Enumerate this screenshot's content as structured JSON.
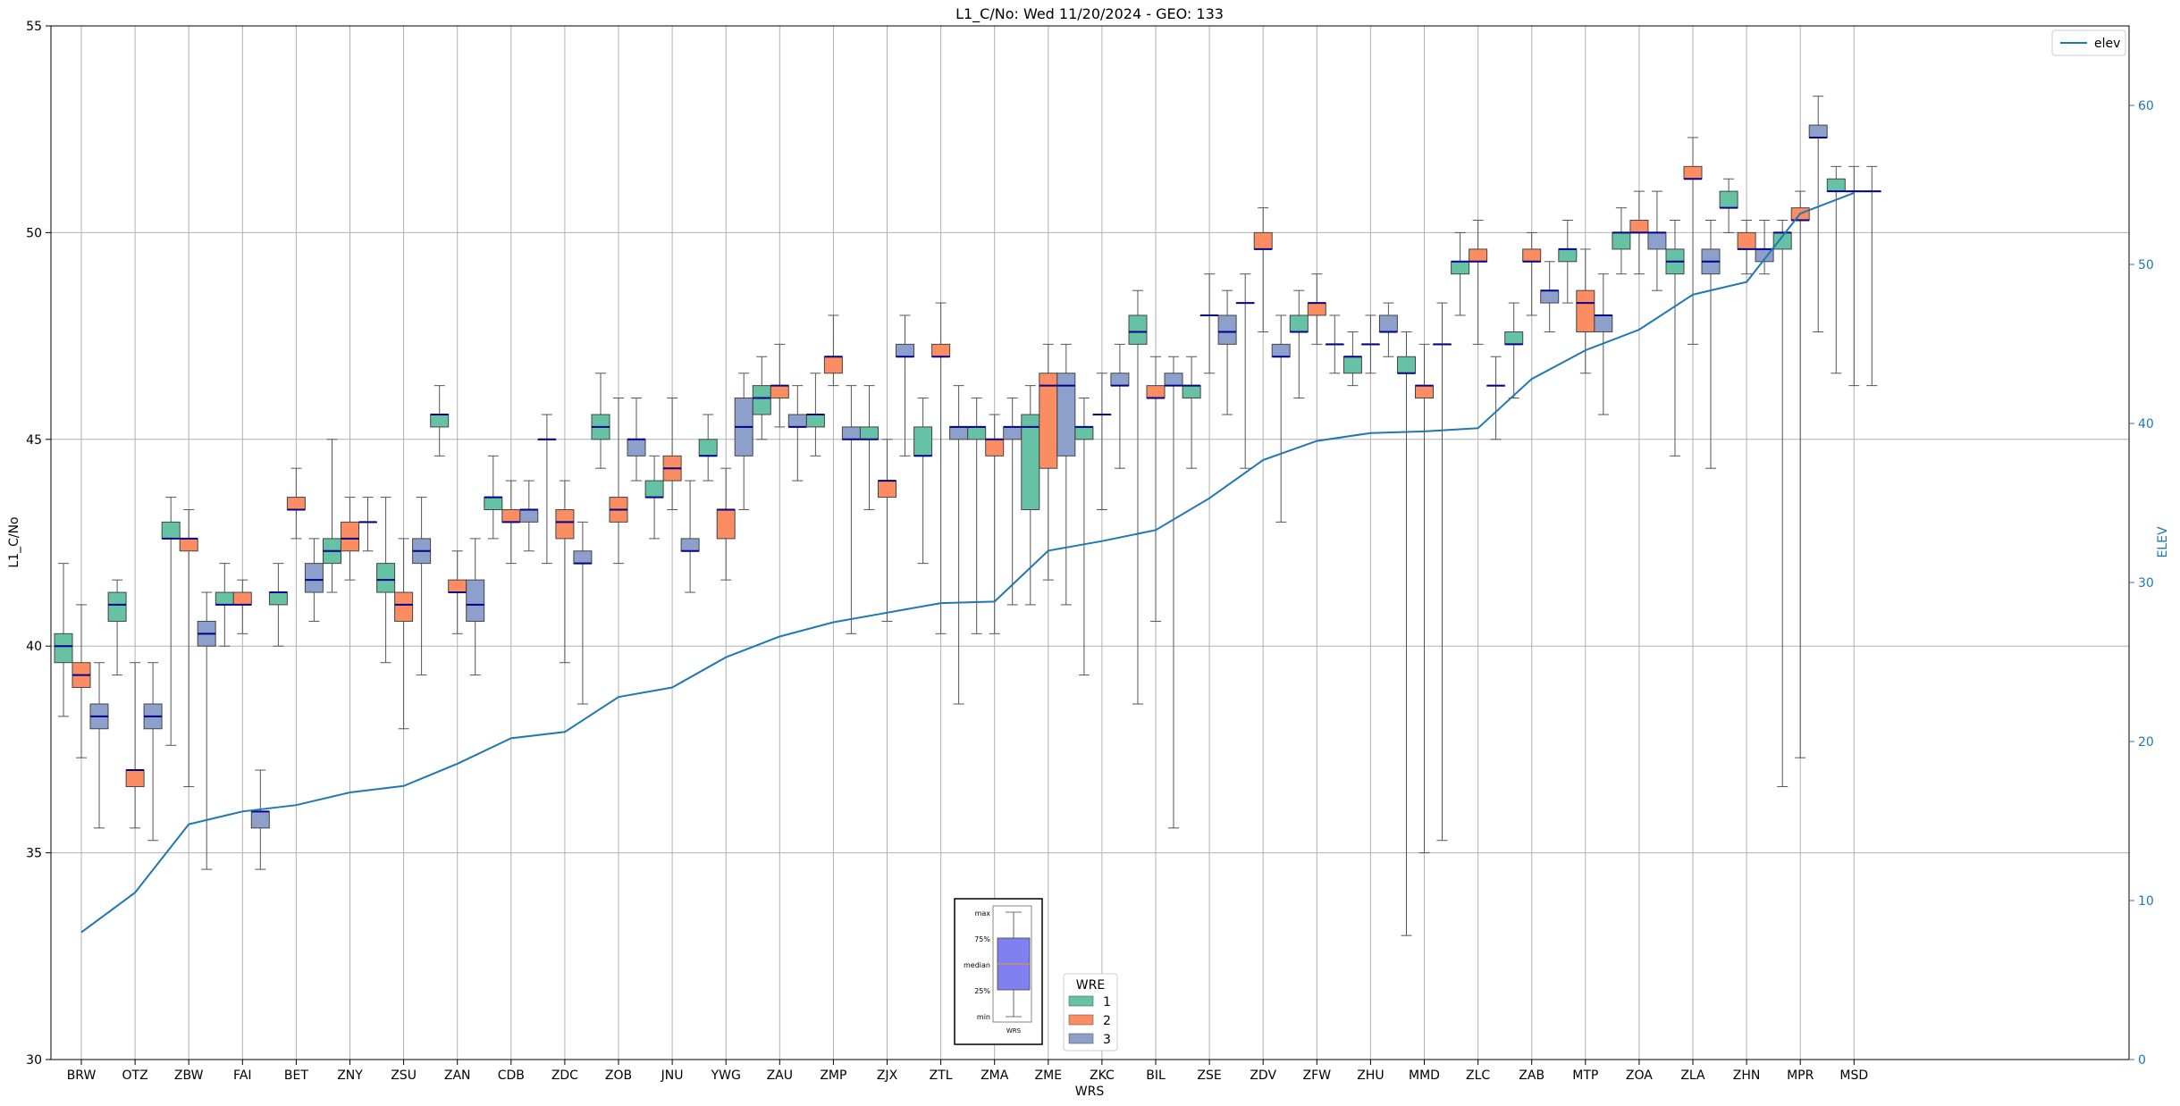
{
  "chart_data": {
    "type": "box",
    "title": "L1_C/No: Wed 11/20/2024 - GEO: 133",
    "xlabel": "WRS",
    "ylabel": "L1_C/No",
    "y2label": "ELEV",
    "ylim": [
      30,
      55
    ],
    "y2lim": [
      0,
      65
    ],
    "yticks": [
      30,
      35,
      40,
      45,
      50,
      55
    ],
    "y2ticks": [
      0,
      10,
      20,
      30,
      40,
      50,
      60
    ],
    "grid": true,
    "categories": [
      "BRW",
      "OTZ",
      "ZBW",
      "FAI",
      "BET",
      "ZNY",
      "ZSU",
      "ZAN",
      "CDB",
      "ZDC",
      "ZOB",
      "JNU",
      "YWG",
      "ZAU",
      "ZMP",
      "ZJX",
      "ZTL",
      "ZMA",
      "ZME",
      "ZKC",
      "BIL",
      "ZSE",
      "ZDV",
      "ZFW",
      "ZHU",
      "MMD",
      "ZLC",
      "ZAB",
      "MTP",
      "ZOA",
      "ZLA",
      "ZHN",
      "MPR",
      "MSD"
    ],
    "wre_colors": {
      "1": "#66c2a5",
      "2": "#fc8d62",
      "3": "#8da0cb"
    },
    "median_color": "#00008b",
    "elev_color": "#1f77b4",
    "legend": {
      "elev_label": "elev",
      "elev_position": "top-right",
      "wre_title": "WRE",
      "wre_labels": [
        "1",
        "2",
        "3"
      ],
      "wre_position": "bottom-center"
    },
    "key_labels": {
      "max": "max",
      "q3": "75%",
      "median": "median",
      "q1": "25%",
      "min": "min",
      "x": "WRS"
    },
    "elevation": [
      8,
      10.5,
      14.8,
      15.6,
      16,
      16.8,
      17.2,
      18.6,
      20.2,
      20.6,
      22.8,
      23.4,
      25.3,
      26.6,
      27.5,
      28.1,
      28.7,
      28.8,
      32,
      32.6,
      33.3,
      35.3,
      37.7,
      38.9,
      39.4,
      39.5,
      39.7,
      42.8,
      44.6,
      45.9,
      48.1,
      48.9,
      53.2,
      54.5
    ],
    "series": [
      {
        "wre": "1",
        "station": "BRW",
        "min": 38.3,
        "q1": 39.6,
        "median": 40.0,
        "q3": 40.3,
        "max": 42.0
      },
      {
        "wre": "2",
        "station": "BRW",
        "min": 37.3,
        "q1": 39.0,
        "median": 39.3,
        "q3": 39.6,
        "max": 41.0
      },
      {
        "wre": "3",
        "station": "BRW",
        "min": 35.6,
        "q1": 38.0,
        "median": 38.3,
        "q3": 38.6,
        "max": 39.6
      },
      {
        "wre": "1",
        "station": "OTZ",
        "min": 39.3,
        "q1": 40.6,
        "median": 41.0,
        "q3": 41.3,
        "max": 41.6
      },
      {
        "wre": "2",
        "station": "OTZ",
        "min": 35.6,
        "q1": 36.6,
        "median": 37.0,
        "q3": 37.0,
        "max": 39.6
      },
      {
        "wre": "3",
        "station": "OTZ",
        "min": 35.3,
        "q1": 38.0,
        "median": 38.3,
        "q3": 38.6,
        "max": 39.6
      },
      {
        "wre": "1",
        "station": "ZBW",
        "min": 37.6,
        "q1": 42.6,
        "median": 42.6,
        "q3": 43.0,
        "max": 43.6
      },
      {
        "wre": "2",
        "station": "ZBW",
        "min": 36.6,
        "q1": 42.3,
        "median": 42.6,
        "q3": 42.6,
        "max": 43.3
      },
      {
        "wre": "3",
        "station": "ZBW",
        "min": 34.6,
        "q1": 40.0,
        "median": 40.3,
        "q3": 40.6,
        "max": 41.3
      },
      {
        "wre": "1",
        "station": "FAI",
        "min": 40.0,
        "q1": 41.0,
        "median": 41.0,
        "q3": 41.3,
        "max": 42.0
      },
      {
        "wre": "2",
        "station": "FAI",
        "min": 40.3,
        "q1": 41.0,
        "median": 41.0,
        "q3": 41.3,
        "max": 41.6
      },
      {
        "wre": "3",
        "station": "FAI",
        "min": 34.6,
        "q1": 35.6,
        "median": 36.0,
        "q3": 36.0,
        "max": 37.0
      },
      {
        "wre": "1",
        "station": "BET",
        "min": 40.0,
        "q1": 41.0,
        "median": 41.3,
        "q3": 41.3,
        "max": 42.0
      },
      {
        "wre": "2",
        "station": "BET",
        "min": 42.6,
        "q1": 43.3,
        "median": 43.3,
        "q3": 43.6,
        "max": 44.3
      },
      {
        "wre": "3",
        "station": "BET",
        "min": 40.6,
        "q1": 41.3,
        "median": 41.6,
        "q3": 42.0,
        "max": 42.6
      },
      {
        "wre": "1",
        "station": "ZNY",
        "min": 41.3,
        "q1": 42.0,
        "median": 42.3,
        "q3": 42.6,
        "max": 45.0
      },
      {
        "wre": "2",
        "station": "ZNY",
        "min": 41.6,
        "q1": 42.3,
        "median": 42.6,
        "q3": 43.0,
        "max": 43.6
      },
      {
        "wre": "3",
        "station": "ZNY",
        "min": 42.3,
        "q1": 43.0,
        "median": 43.0,
        "q3": 43.0,
        "max": 43.6
      },
      {
        "wre": "1",
        "station": "ZSU",
        "min": 39.6,
        "q1": 41.3,
        "median": 41.6,
        "q3": 42.0,
        "max": 43.6
      },
      {
        "wre": "2",
        "station": "ZSU",
        "min": 38.0,
        "q1": 40.6,
        "median": 41.0,
        "q3": 41.3,
        "max": 42.6
      },
      {
        "wre": "3",
        "station": "ZSU",
        "min": 39.3,
        "q1": 42.0,
        "median": 42.3,
        "q3": 42.6,
        "max": 43.6
      },
      {
        "wre": "1",
        "station": "ZAN",
        "min": 44.6,
        "q1": 45.3,
        "median": 45.6,
        "q3": 45.6,
        "max": 46.3
      },
      {
        "wre": "2",
        "station": "ZAN",
        "min": 40.3,
        "q1": 41.3,
        "median": 41.3,
        "q3": 41.6,
        "max": 42.3
      },
      {
        "wre": "3",
        "station": "ZAN",
        "min": 39.3,
        "q1": 40.6,
        "median": 41.0,
        "q3": 41.6,
        "max": 42.6
      },
      {
        "wre": "1",
        "station": "CDB",
        "min": 42.6,
        "q1": 43.3,
        "median": 43.6,
        "q3": 43.6,
        "max": 44.6
      },
      {
        "wre": "2",
        "station": "CDB",
        "min": 42.0,
        "q1": 43.0,
        "median": 43.0,
        "q3": 43.3,
        "max": 44.0
      },
      {
        "wre": "3",
        "station": "CDB",
        "min": 42.3,
        "q1": 43.0,
        "median": 43.3,
        "q3": 43.3,
        "max": 44.0
      },
      {
        "wre": "1",
        "station": "ZDC",
        "min": 42.0,
        "q1": 45.0,
        "median": 45.0,
        "q3": 45.0,
        "max": 45.6
      },
      {
        "wre": "2",
        "station": "ZDC",
        "min": 39.6,
        "q1": 42.6,
        "median": 43.0,
        "q3": 43.3,
        "max": 44.0
      },
      {
        "wre": "3",
        "station": "ZDC",
        "min": 38.6,
        "q1": 42.0,
        "median": 42.0,
        "q3": 42.3,
        "max": 43.0
      },
      {
        "wre": "1",
        "station": "ZOB",
        "min": 44.3,
        "q1": 45.0,
        "median": 45.3,
        "q3": 45.6,
        "max": 46.6
      },
      {
        "wre": "2",
        "station": "ZOB",
        "min": 42.0,
        "q1": 43.0,
        "median": 43.3,
        "q3": 43.6,
        "max": 46.0
      },
      {
        "wre": "3",
        "station": "ZOB",
        "min": 44.0,
        "q1": 44.6,
        "median": 45.0,
        "q3": 45.0,
        "max": 46.0
      },
      {
        "wre": "1",
        "station": "JNU",
        "min": 42.6,
        "q1": 43.6,
        "median": 43.6,
        "q3": 44.0,
        "max": 44.6
      },
      {
        "wre": "2",
        "station": "JNU",
        "min": 43.3,
        "q1": 44.0,
        "median": 44.3,
        "q3": 44.6,
        "max": 46.0
      },
      {
        "wre": "3",
        "station": "JNU",
        "min": 41.3,
        "q1": 42.3,
        "median": 42.3,
        "q3": 42.6,
        "max": 44.0
      },
      {
        "wre": "1",
        "station": "YWG",
        "min": 44.0,
        "q1": 44.6,
        "median": 44.6,
        "q3": 45.0,
        "max": 45.6
      },
      {
        "wre": "2",
        "station": "YWG",
        "min": 41.6,
        "q1": 42.6,
        "median": 43.3,
        "q3": 43.3,
        "max": 44.3
      },
      {
        "wre": "3",
        "station": "YWG",
        "min": 43.3,
        "q1": 44.6,
        "median": 45.3,
        "q3": 46.0,
        "max": 46.6
      },
      {
        "wre": "1",
        "station": "ZAU",
        "min": 45.0,
        "q1": 45.6,
        "median": 46.0,
        "q3": 46.3,
        "max": 47.0
      },
      {
        "wre": "2",
        "station": "ZAU",
        "min": 45.3,
        "q1": 46.0,
        "median": 46.3,
        "q3": 46.3,
        "max": 47.3
      },
      {
        "wre": "3",
        "station": "ZAU",
        "min": 44.0,
        "q1": 45.3,
        "median": 45.3,
        "q3": 45.6,
        "max": 46.3
      },
      {
        "wre": "1",
        "station": "ZMP",
        "min": 44.6,
        "q1": 45.3,
        "median": 45.6,
        "q3": 45.6,
        "max": 46.6
      },
      {
        "wre": "2",
        "station": "ZMP",
        "min": 46.3,
        "q1": 46.6,
        "median": 47.0,
        "q3": 47.0,
        "max": 48.0
      },
      {
        "wre": "3",
        "station": "ZMP",
        "min": 40.3,
        "q1": 45.0,
        "median": 45.0,
        "q3": 45.3,
        "max": 46.3
      },
      {
        "wre": "1",
        "station": "ZJX",
        "min": 43.3,
        "q1": 45.0,
        "median": 45.0,
        "q3": 45.3,
        "max": 46.3
      },
      {
        "wre": "2",
        "station": "ZJX",
        "min": 40.6,
        "q1": 43.6,
        "median": 44.0,
        "q3": 44.0,
        "max": 45.0
      },
      {
        "wre": "3",
        "station": "ZJX",
        "min": 44.6,
        "q1": 47.0,
        "median": 47.0,
        "q3": 47.3,
        "max": 48.0
      },
      {
        "wre": "1",
        "station": "ZTL",
        "min": 42.0,
        "q1": 44.6,
        "median": 44.6,
        "q3": 45.3,
        "max": 46.0
      },
      {
        "wre": "2",
        "station": "ZTL",
        "min": 40.3,
        "q1": 47.0,
        "median": 47.0,
        "q3": 47.3,
        "max": 48.3
      },
      {
        "wre": "3",
        "station": "ZTL",
        "min": 38.6,
        "q1": 45.0,
        "median": 45.3,
        "q3": 45.3,
        "max": 46.3
      },
      {
        "wre": "1",
        "station": "ZMA",
        "min": 40.3,
        "q1": 45.0,
        "median": 45.3,
        "q3": 45.3,
        "max": 46.0
      },
      {
        "wre": "2",
        "station": "ZMA",
        "min": 40.3,
        "q1": 44.6,
        "median": 45.0,
        "q3": 45.0,
        "max": 45.6
      },
      {
        "wre": "3",
        "station": "ZMA",
        "min": 41.0,
        "q1": 45.0,
        "median": 45.3,
        "q3": 45.3,
        "max": 46.0
      },
      {
        "wre": "1",
        "station": "ZME",
        "min": 41.0,
        "q1": 43.3,
        "median": 45.3,
        "q3": 45.6,
        "max": 46.3
      },
      {
        "wre": "2",
        "station": "ZME",
        "min": 41.6,
        "q1": 44.3,
        "median": 46.3,
        "q3": 46.6,
        "max": 47.3
      },
      {
        "wre": "3",
        "station": "ZME",
        "min": 41.0,
        "q1": 44.6,
        "median": 46.3,
        "q3": 46.6,
        "max": 47.3
      },
      {
        "wre": "1",
        "station": "ZKC",
        "min": 39.3,
        "q1": 45.0,
        "median": 45.3,
        "q3": 45.3,
        "max": 46.0
      },
      {
        "wre": "2",
        "station": "ZKC",
        "min": 43.3,
        "q1": 45.6,
        "median": 45.6,
        "q3": 45.6,
        "max": 46.6
      },
      {
        "wre": "3",
        "station": "ZKC",
        "min": 44.3,
        "q1": 46.3,
        "median": 46.3,
        "q3": 46.6,
        "max": 47.3
      },
      {
        "wre": "1",
        "station": "BIL",
        "min": 38.6,
        "q1": 47.3,
        "median": 47.6,
        "q3": 48.0,
        "max": 48.6
      },
      {
        "wre": "2",
        "station": "BIL",
        "min": 40.6,
        "q1": 46.0,
        "median": 46.0,
        "q3": 46.3,
        "max": 47.0
      },
      {
        "wre": "3",
        "station": "BIL",
        "min": 35.6,
        "q1": 46.3,
        "median": 46.3,
        "q3": 46.6,
        "max": 47.0
      },
      {
        "wre": "1",
        "station": "ZSE",
        "min": 44.3,
        "q1": 46.0,
        "median": 46.3,
        "q3": 46.3,
        "max": 47.0
      },
      {
        "wre": "2",
        "station": "ZSE",
        "min": 46.6,
        "q1": 48.0,
        "median": 48.0,
        "q3": 48.0,
        "max": 49.0
      },
      {
        "wre": "3",
        "station": "ZSE",
        "min": 45.6,
        "q1": 47.3,
        "median": 47.6,
        "q3": 48.0,
        "max": 48.6
      },
      {
        "wre": "1",
        "station": "ZDV",
        "min": 44.3,
        "q1": 48.3,
        "median": 48.3,
        "q3": 48.3,
        "max": 49.0
      },
      {
        "wre": "2",
        "station": "ZDV",
        "min": 47.6,
        "q1": 49.6,
        "median": 49.6,
        "q3": 50.0,
        "max": 50.6
      },
      {
        "wre": "3",
        "station": "ZDV",
        "min": 43.0,
        "q1": 47.0,
        "median": 47.0,
        "q3": 47.3,
        "max": 48.0
      },
      {
        "wre": "1",
        "station": "ZFW",
        "min": 46.0,
        "q1": 47.6,
        "median": 47.6,
        "q3": 48.0,
        "max": 48.6
      },
      {
        "wre": "2",
        "station": "ZFW",
        "min": 47.3,
        "q1": 48.0,
        "median": 48.3,
        "q3": 48.3,
        "max": 49.0
      },
      {
        "wre": "3",
        "station": "ZFW",
        "min": 46.6,
        "q1": 47.3,
        "median": 47.3,
        "q3": 47.3,
        "max": 48.0
      },
      {
        "wre": "1",
        "station": "ZHU",
        "min": 46.3,
        "q1": 46.6,
        "median": 47.0,
        "q3": 47.0,
        "max": 47.6
      },
      {
        "wre": "2",
        "station": "ZHU",
        "min": 46.6,
        "q1": 47.3,
        "median": 47.3,
        "q3": 47.3,
        "max": 48.0
      },
      {
        "wre": "3",
        "station": "ZHU",
        "min": 47.0,
        "q1": 47.6,
        "median": 47.6,
        "q3": 48.0,
        "max": 48.3
      },
      {
        "wre": "1",
        "station": "MMD",
        "min": 33.0,
        "q1": 46.6,
        "median": 46.6,
        "q3": 47.0,
        "max": 47.6
      },
      {
        "wre": "2",
        "station": "MMD",
        "min": 35.0,
        "q1": 46.0,
        "median": 46.3,
        "q3": 46.3,
        "max": 47.3
      },
      {
        "wre": "3",
        "station": "MMD",
        "min": 35.3,
        "q1": 47.3,
        "median": 47.3,
        "q3": 47.3,
        "max": 48.3
      },
      {
        "wre": "1",
        "station": "ZLC",
        "min": 48.0,
        "q1": 49.0,
        "median": 49.3,
        "q3": 49.3,
        "max": 50.0
      },
      {
        "wre": "2",
        "station": "ZLC",
        "min": 47.3,
        "q1": 49.3,
        "median": 49.3,
        "q3": 49.6,
        "max": 50.3
      },
      {
        "wre": "3",
        "station": "ZLC",
        "min": 45.0,
        "q1": 46.3,
        "median": 46.3,
        "q3": 46.3,
        "max": 47.0
      },
      {
        "wre": "1",
        "station": "ZAB",
        "min": 46.0,
        "q1": 47.3,
        "median": 47.3,
        "q3": 47.6,
        "max": 48.3
      },
      {
        "wre": "2",
        "station": "ZAB",
        "min": 48.0,
        "q1": 49.3,
        "median": 49.3,
        "q3": 49.6,
        "max": 50.0
      },
      {
        "wre": "3",
        "station": "ZAB",
        "min": 47.6,
        "q1": 48.3,
        "median": 48.6,
        "q3": 48.6,
        "max": 49.3
      },
      {
        "wre": "1",
        "station": "MTP",
        "min": 48.3,
        "q1": 49.3,
        "median": 49.6,
        "q3": 49.6,
        "max": 50.3
      },
      {
        "wre": "2",
        "station": "MTP",
        "min": 46.6,
        "q1": 47.6,
        "median": 48.3,
        "q3": 48.6,
        "max": 49.6
      },
      {
        "wre": "3",
        "station": "MTP",
        "min": 45.6,
        "q1": 47.6,
        "median": 48.0,
        "q3": 48.0,
        "max": 49.0
      },
      {
        "wre": "1",
        "station": "ZOA",
        "min": 49.0,
        "q1": 49.6,
        "median": 50.0,
        "q3": 50.0,
        "max": 50.6
      },
      {
        "wre": "2",
        "station": "ZOA",
        "min": 49.0,
        "q1": 50.0,
        "median": 50.0,
        "q3": 50.3,
        "max": 51.0
      },
      {
        "wre": "3",
        "station": "ZOA",
        "min": 48.6,
        "q1": 49.6,
        "median": 50.0,
        "q3": 50.0,
        "max": 51.0
      },
      {
        "wre": "1",
        "station": "ZLA",
        "min": 44.6,
        "q1": 49.0,
        "median": 49.3,
        "q3": 49.6,
        "max": 50.3
      },
      {
        "wre": "2",
        "station": "ZLA",
        "min": 47.3,
        "q1": 51.3,
        "median": 51.3,
        "q3": 51.6,
        "max": 52.3
      },
      {
        "wre": "3",
        "station": "ZLA",
        "min": 44.3,
        "q1": 49.0,
        "median": 49.3,
        "q3": 49.6,
        "max": 50.3
      },
      {
        "wre": "1",
        "station": "ZHN",
        "min": 50.0,
        "q1": 50.6,
        "median": 50.6,
        "q3": 51.0,
        "max": 51.3
      },
      {
        "wre": "2",
        "station": "ZHN",
        "min": 49.0,
        "q1": 49.6,
        "median": 49.6,
        "q3": 50.0,
        "max": 50.3
      },
      {
        "wre": "3",
        "station": "ZHN",
        "min": 49.0,
        "q1": 49.3,
        "median": 49.6,
        "q3": 49.6,
        "max": 50.3
      },
      {
        "wre": "1",
        "station": "MPR",
        "min": 36.6,
        "q1": 49.6,
        "median": 50.0,
        "q3": 50.0,
        "max": 50.3
      },
      {
        "wre": "2",
        "station": "MPR",
        "min": 37.3,
        "q1": 50.3,
        "median": 50.3,
        "q3": 50.6,
        "max": 51.0
      },
      {
        "wre": "3",
        "station": "MPR",
        "min": 47.6,
        "q1": 52.3,
        "median": 52.3,
        "q3": 52.6,
        "max": 53.3
      },
      {
        "wre": "1",
        "station": "MSD",
        "min": 46.6,
        "q1": 51.0,
        "median": 51.0,
        "q3": 51.3,
        "max": 51.6
      },
      {
        "wre": "2",
        "station": "MSD",
        "min": 46.3,
        "q1": 51.0,
        "median": 51.0,
        "q3": 51.0,
        "max": 51.6
      },
      {
        "wre": "3",
        "station": "MSD",
        "min": 46.3,
        "q1": 51.0,
        "median": 51.0,
        "q3": 51.0,
        "max": 51.6
      }
    ]
  }
}
